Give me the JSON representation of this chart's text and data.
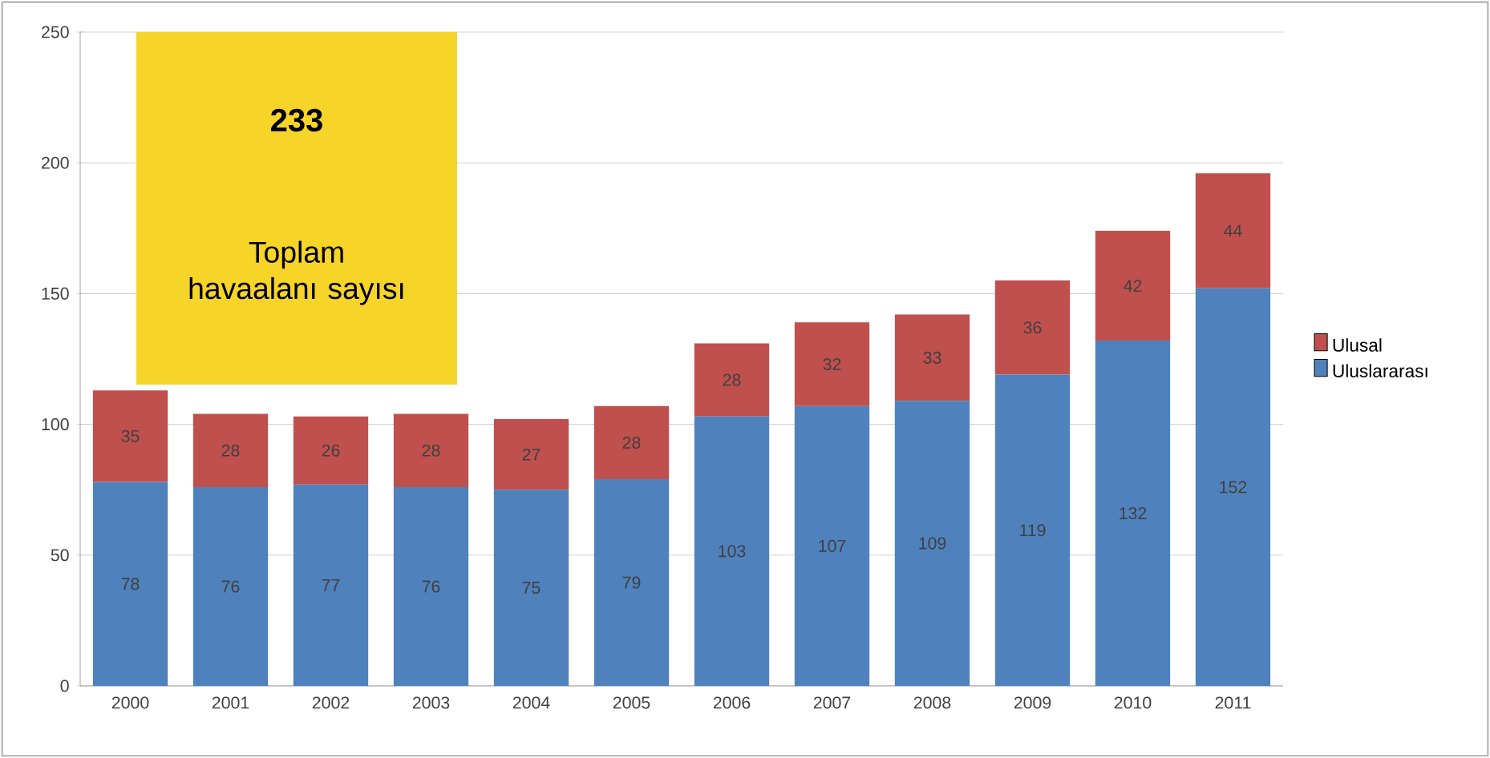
{
  "chart_data": {
    "type": "bar",
    "stacked": true,
    "categories": [
      "2000",
      "2001",
      "2002",
      "2003",
      "2004",
      "2005",
      "2006",
      "2007",
      "2008",
      "2009",
      "2010",
      "2011"
    ],
    "series": [
      {
        "name": "Uluslararası",
        "color": "#4f81bd",
        "values": [
          78,
          76,
          77,
          76,
          75,
          79,
          103,
          107,
          109,
          119,
          132,
          152
        ]
      },
      {
        "name": "Ulusal",
        "color": "#c0504d",
        "values": [
          35,
          28,
          26,
          28,
          27,
          28,
          28,
          32,
          33,
          36,
          42,
          44
        ]
      }
    ],
    "ylim": [
      0,
      250
    ],
    "yticks": [
      0,
      50,
      100,
      150,
      200,
      250
    ],
    "grid": "y",
    "legend": "right",
    "data_labels": true,
    "annotations": [
      "233",
      "Toplam havaalanı sayısı"
    ]
  }
}
